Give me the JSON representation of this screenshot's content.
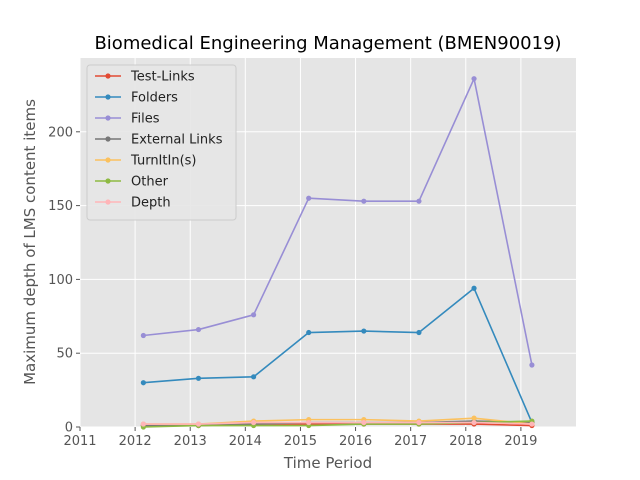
{
  "chart_data": {
    "type": "line",
    "title": "Biomedical Engineering Management (BMEN90019)",
    "xlabel": "Time Period",
    "ylabel": "Maximum depth of LMS content items",
    "xlim": [
      2011,
      2020
    ],
    "ylim": [
      0,
      250
    ],
    "x_ticks": [
      "2011",
      "2012",
      "2013",
      "2014",
      "2015",
      "2016",
      "2017",
      "2018",
      "2019"
    ],
    "y_ticks": [
      "0",
      "50",
      "100",
      "150",
      "200"
    ],
    "grid": true,
    "legend_position": "top-left",
    "x": [
      2012.15,
      2013.15,
      2014.15,
      2015.15,
      2016.15,
      2017.15,
      2018.15,
      2019.2
    ],
    "series": [
      {
        "name": "Test-Links",
        "color": "#E24A33",
        "values": [
          1,
          1,
          2,
          2,
          2,
          2,
          2,
          1
        ]
      },
      {
        "name": "Folders",
        "color": "#348ABD",
        "values": [
          30,
          33,
          34,
          64,
          65,
          64,
          94,
          3
        ]
      },
      {
        "name": "Files",
        "color": "#988ED5",
        "values": [
          62,
          66,
          76,
          155,
          153,
          153,
          236,
          42
        ]
      },
      {
        "name": "External Links",
        "color": "#777777",
        "values": [
          1,
          1,
          2,
          3,
          3,
          3,
          4,
          3
        ]
      },
      {
        "name": "TurnItIn(s)",
        "color": "#FBC15E",
        "values": [
          2,
          2,
          4,
          5,
          5,
          4,
          6,
          2
        ]
      },
      {
        "name": "Other",
        "color": "#8EBA42",
        "values": [
          0,
          1,
          1,
          1,
          2,
          2,
          3,
          4
        ]
      },
      {
        "name": "Depth",
        "color": "#FFB5B8",
        "values": [
          2,
          2,
          3,
          3,
          3,
          3,
          3,
          2
        ]
      }
    ]
  }
}
